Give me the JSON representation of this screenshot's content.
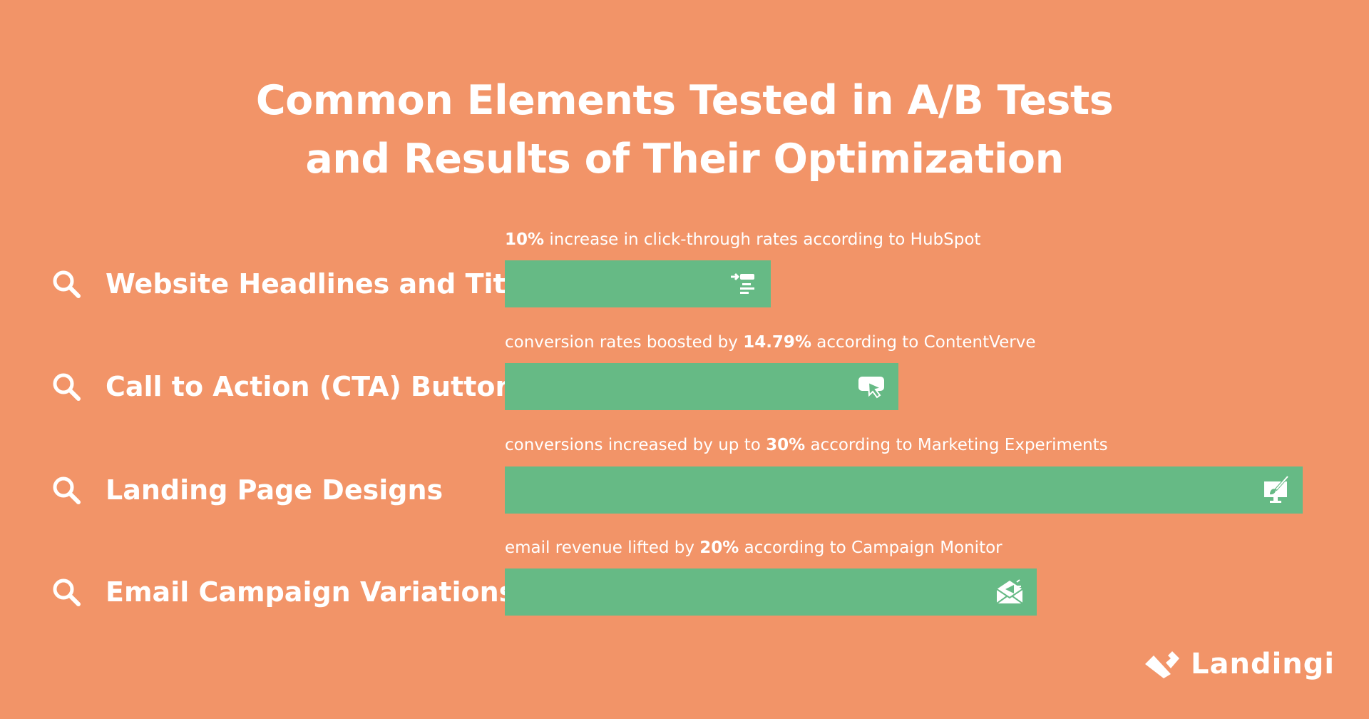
{
  "title": {
    "line1": "Common Elements Tested in A/B Tests",
    "line2": "and Results of Their Optimization"
  },
  "colors": {
    "background": "#F29468",
    "bar": "#66BA85",
    "text": "#FFFFFF"
  },
  "chart_data": {
    "type": "bar",
    "orientation": "horizontal",
    "unit": "%",
    "categories": [
      "Website Headlines and Titles",
      "Call to Action (CTA) Buttons",
      "Landing Page Designs",
      "Email Campaign Variations"
    ],
    "values": [
      10,
      14.79,
      30,
      20
    ],
    "annotations": [
      {
        "pre": "",
        "value": "10%",
        "post": " increase in click-through rates according to HubSpot"
      },
      {
        "pre": "conversion rates boosted by ",
        "value": "14.79%",
        "post": " according to ContentVerve"
      },
      {
        "pre": "conversions increased by up to ",
        "value": "30%",
        "post": " according to Marketing Experiments"
      },
      {
        "pre": "email revenue lifted by ",
        "value": "20%",
        "post": " according to Campaign Monitor"
      }
    ],
    "icons": [
      "headline-list-icon",
      "cursor-click-icon",
      "monitor-brush-icon",
      "email-megaphone-icon"
    ],
    "row_icon": "search-icon"
  },
  "logo": {
    "text": "Landingi"
  }
}
